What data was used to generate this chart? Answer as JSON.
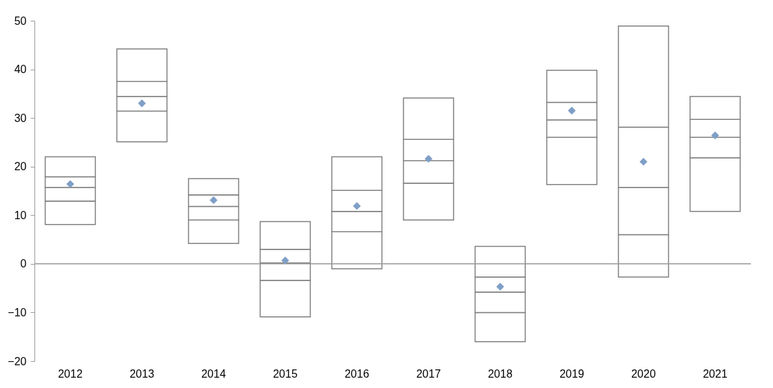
{
  "chart_data": {
    "type": "bar",
    "categories": [
      "2012",
      "2013",
      "2014",
      "2015",
      "2016",
      "2017",
      "2018",
      "2019",
      "2020",
      "2021"
    ],
    "series": [
      {
        "color": "#ffffff",
        "base": [
          8.1,
          25.1,
          4.2,
          -10.9,
          -1.0,
          9.0,
          -16.0,
          16.3,
          -2.7,
          10.8
        ],
        "values": [
          4.8,
          6.3,
          4.8,
          7.5,
          7.6,
          7.6,
          6.0,
          9.7,
          8.7,
          11.0
        ]
      },
      {
        "color": "#ffffff",
        "base": [
          12.9,
          31.4,
          9.0,
          -3.4,
          6.6,
          16.6,
          -10.0,
          26.0,
          6.0,
          21.8
        ],
        "values": [
          2.8,
          3.0,
          2.8,
          3.6,
          4.2,
          4.6,
          4.2,
          3.6,
          9.7,
          4.2
        ]
      },
      {
        "color": "#ffffff",
        "base": [
          15.7,
          34.4,
          11.8,
          0.2,
          10.8,
          21.2,
          -5.8,
          29.6,
          15.7,
          26.0
        ],
        "values": [
          2.2,
          3.1,
          2.4,
          2.8,
          4.3,
          4.4,
          3.1,
          3.6,
          12.4,
          3.7
        ]
      },
      {
        "color": "#ffffff",
        "base": [
          17.9,
          37.5,
          14.2,
          3.0,
          15.1,
          25.6,
          -2.7,
          33.2,
          28.1,
          29.7
        ],
        "values": [
          4.1,
          6.7,
          3.3,
          5.7,
          6.9,
          8.5,
          6.3,
          6.6,
          20.8,
          4.7
        ]
      },
      {
        "type": "scatter",
        "color": "#7f9fc7",
        "values": [
          16.4,
          33.0,
          13.1,
          0.7,
          11.9,
          21.6,
          -4.7,
          31.5,
          21.0,
          26.4
        ]
      }
    ],
    "marker": "diamond",
    "ylim": [
      -20,
      50
    ],
    "yticks": [
      -20,
      -10,
      0,
      10,
      20,
      30,
      40,
      50
    ],
    "ref_lines": [
      {
        "axis": "y",
        "value": 0,
        "color": "#999999"
      }
    ]
  }
}
